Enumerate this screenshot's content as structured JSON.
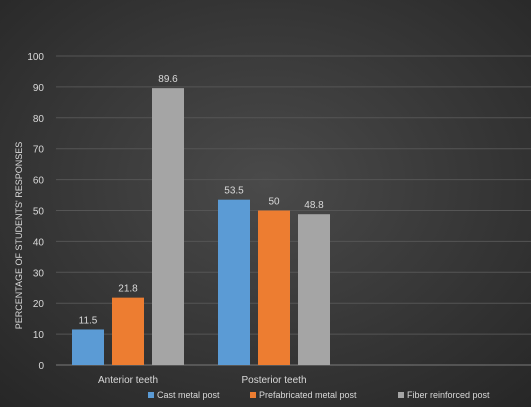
{
  "chart_data": {
    "type": "bar",
    "title": "",
    "xlabel": "",
    "ylabel": "PERCENTAGE OF STUDENTS' RESPONSES",
    "ylim": [
      0,
      100
    ],
    "yticks": [
      0,
      10,
      20,
      30,
      40,
      50,
      60,
      70,
      80,
      90,
      100
    ],
    "ytick_labels": [
      "0",
      "10",
      "20",
      "30",
      "40",
      "50",
      "60",
      "70",
      "80",
      "90",
      "100"
    ],
    "categories": [
      "Anterior teeth",
      "Posterior teeth"
    ],
    "series": [
      {
        "name": "Cast metal post",
        "color": "#5b9bd5",
        "values": [
          11.5,
          53.5
        ],
        "labels": [
          "11.5",
          "53.5"
        ]
      },
      {
        "name": "Prefabricated metal post",
        "color": "#ed7d31",
        "values": [
          21.8,
          50
        ],
        "labels": [
          "21.8",
          "50"
        ]
      },
      {
        "name": "Fiber reinforced post",
        "color": "#a5a5a5",
        "values": [
          89.6,
          48.8
        ],
        "labels": [
          "89.6",
          "48.8"
        ]
      }
    ],
    "grid": true,
    "legend_position": "bottom"
  },
  "colors": {
    "background": "#3a3a3a",
    "gridline": "#555555",
    "axis_line": "#7a7a7a",
    "text": "#d9d9d9"
  }
}
